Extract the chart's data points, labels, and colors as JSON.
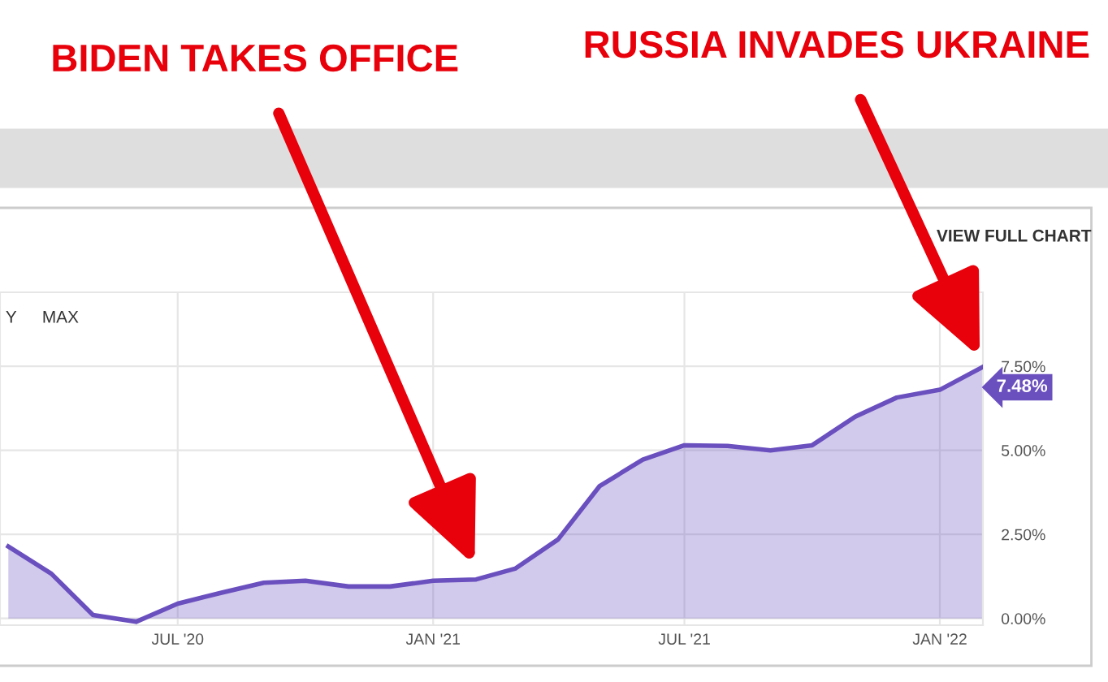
{
  "chart_data": {
    "type": "area",
    "x": [
      "2020-03-01",
      "2020-04-01",
      "2020-05-01",
      "2020-06-01",
      "2020-07-01",
      "2020-08-01",
      "2020-09-01",
      "2020-10-01",
      "2020-11-01",
      "2020-12-01",
      "2021-01-01",
      "2021-02-01",
      "2021-03-01",
      "2021-04-01",
      "2021-05-01",
      "2021-06-01",
      "2021-07-01",
      "2021-08-01",
      "2021-09-01",
      "2021-10-01",
      "2021-11-01",
      "2021-12-01",
      "2022-01-01",
      "2022-02-01"
    ],
    "series": [
      {
        "color": "#6a4fbf",
        "values": [
          2.14,
          1.33,
          0.1,
          -0.1,
          0.44,
          0.76,
          1.06,
          1.12,
          0.95,
          0.95,
          1.12,
          1.16,
          1.48,
          2.35,
          3.94,
          4.72,
          5.15,
          5.13,
          5.0,
          5.15,
          6.0,
          6.57,
          6.8,
          7.48
        ],
        "value_labels": [
          null,
          null,
          null,
          null,
          null,
          null,
          null,
          null,
          null,
          null,
          null,
          null,
          null,
          null,
          null,
          null,
          null,
          null,
          null,
          null,
          null,
          null,
          null,
          "7.48%"
        ]
      }
    ],
    "xlim": [
      "2020-02-24",
      "2022-02-01"
    ],
    "xticks": [
      {
        "value": "2020-07-01",
        "label": "JUL '20"
      },
      {
        "value": "2021-01-01",
        "label": "JAN '21"
      },
      {
        "value": "2021-07-01",
        "label": "JUL '21"
      },
      {
        "value": "2022-01-01",
        "label": "JAN '22"
      }
    ],
    "ylim": [
      -0.2,
      9.7
    ],
    "yticks": [
      {
        "value": 0,
        "label": "0.00%"
      },
      {
        "value": 2.5,
        "label": "2.50%"
      },
      {
        "value": 5,
        "label": "5.00%"
      },
      {
        "value": 7.5,
        "label": "7.50%"
      }
    ],
    "grid": true,
    "annotations": [
      "BIDEN TAKES OFFICE",
      "RUSSIA INVADES UKRAINE",
      "VIEW FULL CHART",
      "Y",
      "MAX"
    ]
  }
}
